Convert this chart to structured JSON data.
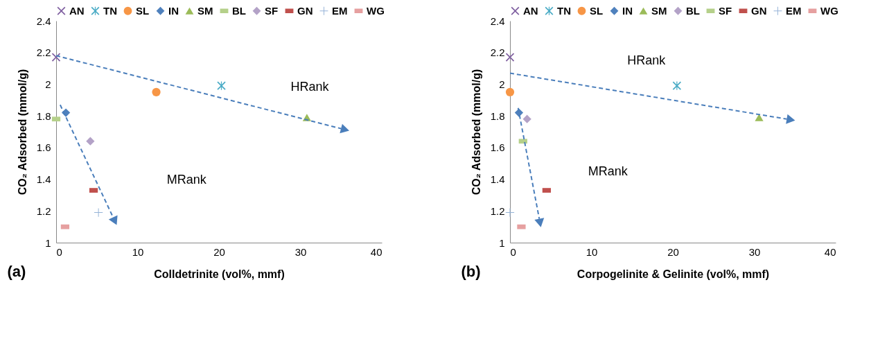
{
  "chart_data": [
    {
      "type": "scatter",
      "xlabel": "Colldetrinite (vol%, mmf)",
      "ylabel": "CO₂ Adsorbed (mmol/g)",
      "xlim": [
        0,
        40
      ],
      "xticks": [
        0,
        10,
        20,
        30,
        40
      ],
      "ylim": [
        1,
        2.4
      ],
      "yticks": [
        1,
        1.2,
        1.4,
        1.6,
        1.8,
        2,
        2.2,
        2.4
      ],
      "grid": false,
      "legend": "top",
      "annotations": [
        "HRank",
        "MRank",
        "(a)"
      ],
      "series": [
        {
          "name": "AN",
          "color": "#7f5fa0",
          "marker": "cross",
          "x": [
            0
          ],
          "values": [
            2.17
          ]
        },
        {
          "name": "TN",
          "color": "#4bacc6",
          "marker": "star",
          "x": [
            20.3
          ],
          "values": [
            1.99
          ]
        },
        {
          "name": "SL",
          "color": "#f79646",
          "marker": "circle",
          "x": [
            12.3
          ],
          "values": [
            1.95
          ]
        },
        {
          "name": "IN",
          "color": "#4f81bd",
          "marker": "diamond",
          "x": [
            1.2
          ],
          "values": [
            1.82
          ]
        },
        {
          "name": "SM",
          "color": "#9bbb59",
          "marker": "triangle",
          "x": [
            30.8
          ],
          "values": [
            1.79
          ]
        },
        {
          "name": "BL",
          "color": "#b5d08a",
          "marker": "square",
          "x": [
            0
          ],
          "values": [
            1.78
          ]
        },
        {
          "name": "SF",
          "color": "#b3a2c7",
          "marker": "diamond",
          "x": [
            4.2
          ],
          "values": [
            1.64
          ]
        },
        {
          "name": "GN",
          "color": "#c0504d",
          "marker": "square",
          "x": [
            4.6
          ],
          "values": [
            1.33
          ]
        },
        {
          "name": "EM",
          "color": "#95b3d7",
          "marker": "plus",
          "x": [
            5.2
          ],
          "values": [
            1.19
          ]
        },
        {
          "name": "WG",
          "color": "#e6a0a0",
          "marker": "square",
          "x": [
            1.1
          ],
          "values": [
            1.1
          ]
        }
      ]
    },
    {
      "type": "scatter",
      "xlabel": "Corpogelinite & Gelinite (vol%, mmf)",
      "ylabel": "CO₂ Adsorbed (mmol/g)",
      "xlim": [
        0,
        40
      ],
      "xticks": [
        0,
        10,
        20,
        30,
        40
      ],
      "ylim": [
        1,
        2.4
      ],
      "yticks": [
        1,
        1.2,
        1.4,
        1.6,
        1.8,
        2,
        2.2,
        2.4
      ],
      "grid": false,
      "legend": "top",
      "annotations": [
        "HRank",
        "MRank",
        "(b)"
      ],
      "series": [
        {
          "name": "AN",
          "color": "#7f5fa0",
          "marker": "cross",
          "x": [
            0
          ],
          "values": [
            2.17
          ]
        },
        {
          "name": "TN",
          "color": "#4bacc6",
          "marker": "star",
          "x": [
            20.5
          ],
          "values": [
            1.99
          ]
        },
        {
          "name": "SL",
          "color": "#f79646",
          "marker": "circle",
          "x": [
            0
          ],
          "values": [
            1.95
          ]
        },
        {
          "name": "IN",
          "color": "#4f81bd",
          "marker": "diamond",
          "x": [
            1.1
          ],
          "values": [
            1.82
          ]
        },
        {
          "name": "SM",
          "color": "#9bbb59",
          "marker": "triangle",
          "x": [
            30.6
          ],
          "values": [
            1.79
          ]
        },
        {
          "name": "BL",
          "color": "#b3a2c7",
          "marker": "diamond",
          "x": [
            2.1
          ],
          "values": [
            1.78
          ]
        },
        {
          "name": "SF",
          "color": "#b5d08a",
          "marker": "square",
          "x": [
            1.6
          ],
          "values": [
            1.64
          ]
        },
        {
          "name": "GN",
          "color": "#c0504d",
          "marker": "square",
          "x": [
            4.5
          ],
          "values": [
            1.33
          ]
        },
        {
          "name": "EM",
          "color": "#95b3d7",
          "marker": "plus",
          "x": [
            0
          ],
          "values": [
            1.19
          ]
        },
        {
          "name": "WG",
          "color": "#e6a0a0",
          "marker": "square",
          "x": [
            1.4
          ],
          "values": [
            1.1
          ]
        }
      ]
    }
  ]
}
